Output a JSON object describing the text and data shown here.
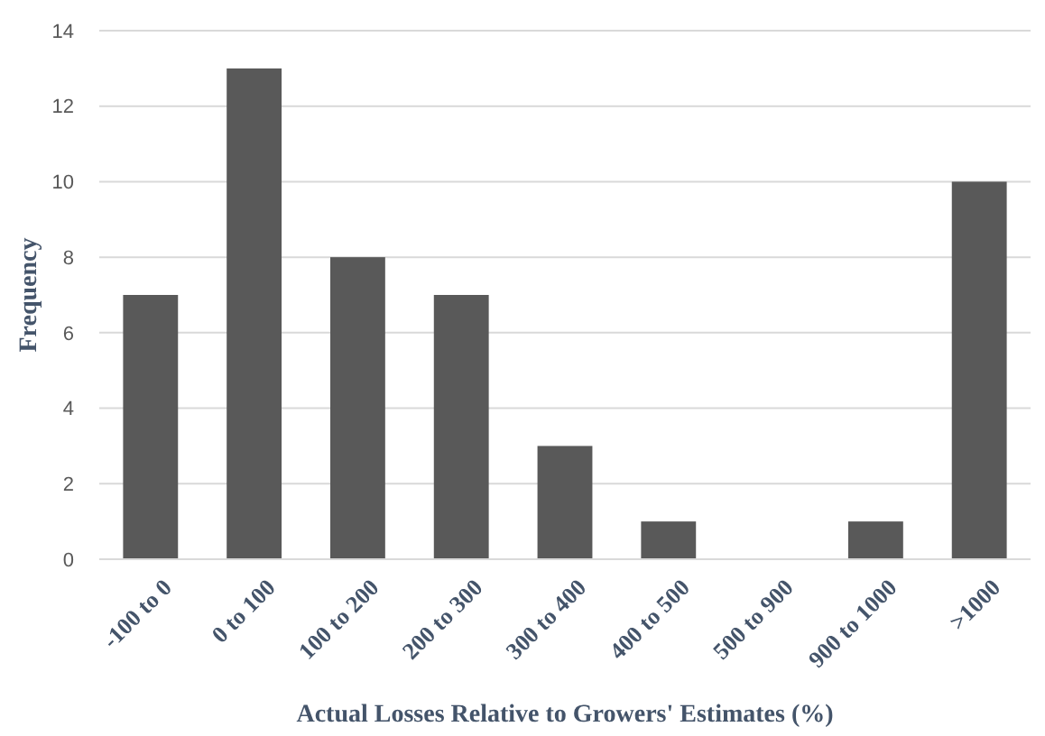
{
  "chart_data": {
    "type": "bar",
    "xlabel": "Actual Losses Relative to Growers' Estimates (%)",
    "ylabel": "Frequency",
    "categories": [
      "-100 to 0",
      "0 to 100",
      "100 to 200",
      "200 to 300",
      "300 to 400",
      "400 to 500",
      "500 to 900",
      "900 to 1000",
      ">1000"
    ],
    "values": [
      7,
      13,
      8,
      7,
      3,
      1,
      0,
      1,
      10
    ],
    "color": "#595959",
    "ylim": [
      0,
      14
    ],
    "yticks": [
      0,
      2,
      4,
      6,
      8,
      10,
      12,
      14
    ],
    "grid": "y"
  }
}
